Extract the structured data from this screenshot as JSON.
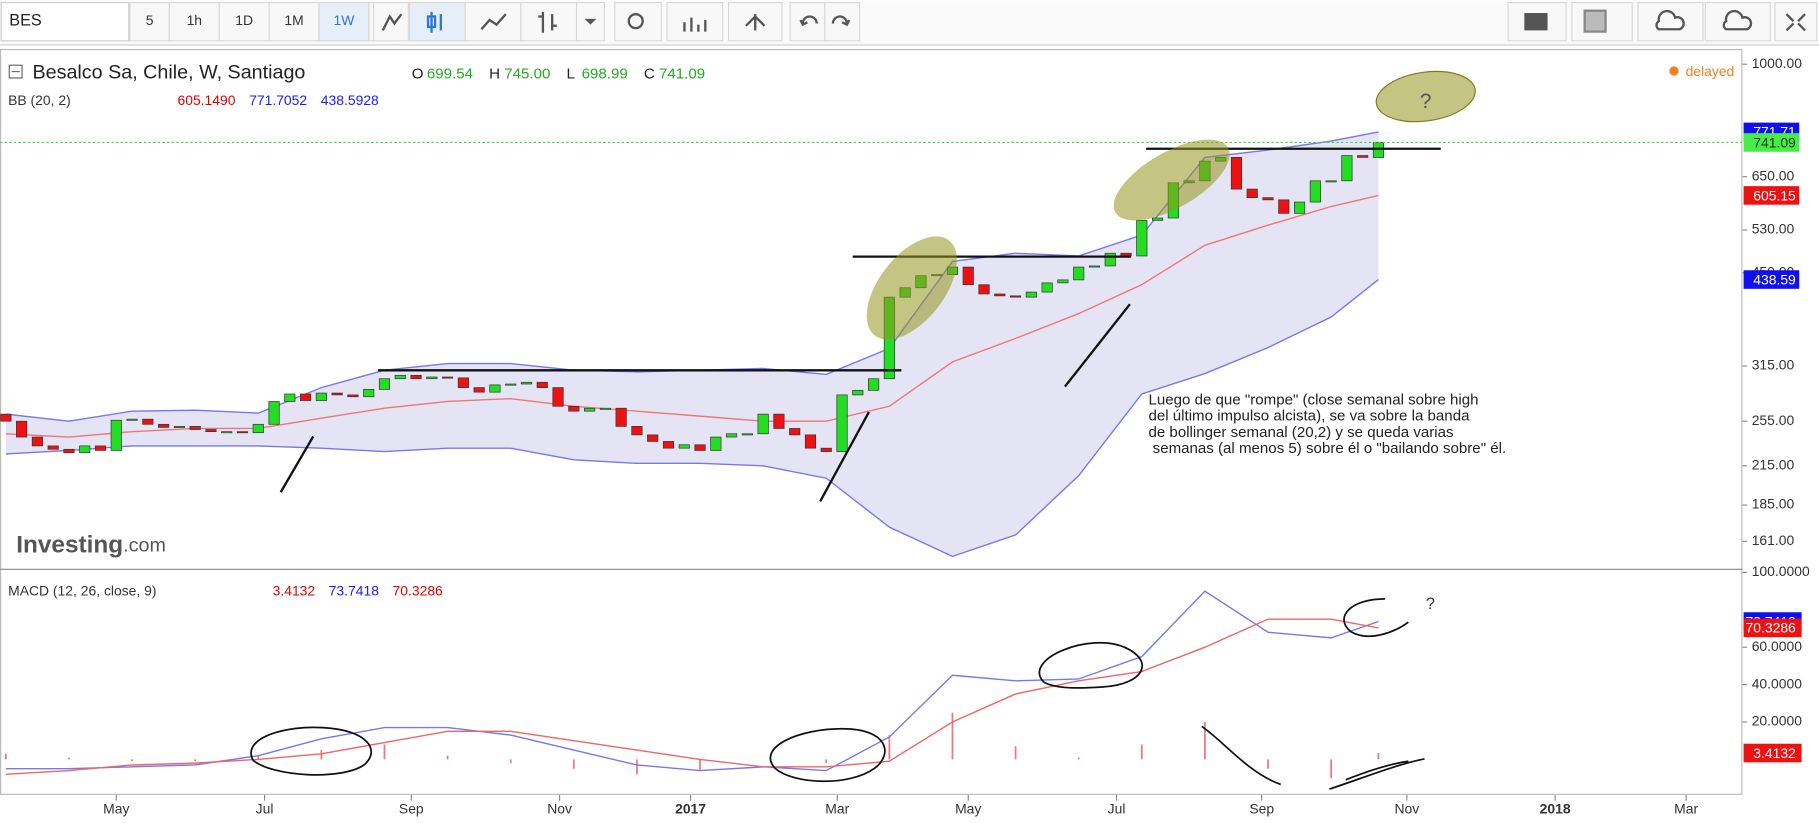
{
  "toolbar": {
    "symbol": "BES",
    "intervals": [
      "5",
      "1h",
      "1D",
      "1M",
      "1W"
    ]
  },
  "header": {
    "title": "Besalco Sa, Chile, W, Santiago",
    "ohlc": [
      {
        "key": "O",
        "value": "699.54"
      },
      {
        "key": "H",
        "value": "745.00"
      },
      {
        "key": "L",
        "value": "698.99"
      },
      {
        "key": "C",
        "value": "741.09"
      }
    ],
    "status": "delayed"
  },
  "bb_legend": {
    "name": "BB (20, 2)",
    "values": [
      {
        "text": "605.1490",
        "color": "#e00000"
      },
      {
        "text": "771.7052",
        "color": "#1a1aff"
      },
      {
        "text": "438.5928",
        "color": "#1a1aff"
      }
    ]
  },
  "macd_legend": {
    "name": "MACD (12, 26, close, 9)",
    "values": [
      {
        "text": "3.4132",
        "color": "#e00000"
      },
      {
        "text": "73.7418",
        "color": "#1a1aff"
      },
      {
        "text": "70.3286",
        "color": "#e00000"
      }
    ]
  },
  "watermark": {
    "brand": "Investing",
    "suffix": ".com"
  },
  "x_axis": {
    "xlim": [
      -0.37,
      110.07
    ],
    "xticks": [
      {
        "value": 7,
        "label": "May"
      },
      {
        "value": 16.4,
        "label": "Jul"
      },
      {
        "value": 25.7,
        "label": "Sep"
      },
      {
        "value": 35.1,
        "label": "Nov"
      },
      {
        "value": 43.4,
        "label": "2017"
      },
      {
        "value": 52.7,
        "label": "Mar"
      },
      {
        "value": 61,
        "label": "May"
      },
      {
        "value": 70.4,
        "label": "Jul"
      },
      {
        "value": 79.6,
        "label": "Sep"
      },
      {
        "value": 88.8,
        "label": "Nov"
      },
      {
        "value": 98.2,
        "label": "2018"
      },
      {
        "value": 106.5,
        "label": "Mar"
      }
    ]
  },
  "chart_data": [
    {
      "type": "candlestick",
      "log_scale": true,
      "ylim": [
        145,
        1060
      ],
      "yticks": [
        {
          "value": 1000,
          "label": "1000.00"
        },
        {
          "value": 650,
          "label": "650.00"
        },
        {
          "value": 530,
          "label": "530.00"
        },
        {
          "value": 450,
          "label": "450.00"
        },
        {
          "value": 315,
          "label": "315.00"
        },
        {
          "value": 255,
          "label": "255.00"
        },
        {
          "value": 215,
          "label": "215.00"
        },
        {
          "value": 185,
          "label": "185.00"
        },
        {
          "value": 161,
          "label": "161.00"
        }
      ],
      "up_color": "#22dd22",
      "down_color": "#ee1111",
      "open": [
        262,
        255,
        240,
        232,
        229,
        226,
        232,
        228,
        256,
        257,
        252,
        249,
        250,
        247,
        245,
        245,
        244,
        252,
        275,
        283,
        276,
        284,
        282,
        280,
        288,
        300,
        304,
        300,
        302,
        301,
        290,
        285,
        293,
        294,
        296,
        290,
        270,
        265,
        268,
        268,
        250,
        242,
        236,
        230,
        233,
        228,
        240,
        243,
        243,
        262,
        248,
        242,
        230,
        227,
        282,
        287,
        300,
        410,
        425,
        445,
        447,
        460,
        430,
        415,
        412,
        410,
        418,
        433,
        438,
        460,
        462,
        485,
        480,
        550,
        555,
        635,
        640,
        690,
        700,
        620,
        600,
        595,
        565,
        590,
        640,
        640,
        705,
        699.54
      ],
      "close": [
        255,
        240,
        232,
        229,
        226,
        232,
        228,
        256,
        257,
        252,
        249,
        250,
        247,
        245,
        245,
        244,
        252,
        275,
        283,
        276,
        284,
        282,
        280,
        288,
        300,
        304,
        300,
        302,
        301,
        290,
        285,
        293,
        294,
        296,
        290,
        270,
        265,
        268,
        268,
        250,
        242,
        236,
        230,
        233,
        228,
        240,
        243,
        243,
        262,
        248,
        242,
        230,
        227,
        282,
        287,
        300,
        410,
        425,
        445,
        447,
        460,
        430,
        415,
        412,
        410,
        418,
        433,
        438,
        460,
        462,
        485,
        480,
        550,
        555,
        635,
        640,
        690,
        700,
        620,
        600,
        595,
        565,
        590,
        640,
        640,
        705,
        700,
        741.09
      ],
      "band_x": [
        0,
        4,
        8,
        12,
        16,
        20,
        24,
        28,
        32,
        36,
        40,
        44,
        48,
        52,
        56,
        60,
        64,
        68,
        72,
        76,
        80,
        84,
        87
      ],
      "bands": [
        {
          "name": "upper",
          "color": "#7777ee",
          "values": [
            262,
            255,
            265,
            266,
            263,
            290,
            310,
            318,
            318,
            310,
            308,
            310,
            312,
            305,
            337,
            470,
            485,
            480,
            520,
            700,
            720,
            745,
            771.71
          ]
        },
        {
          "name": "middle",
          "color": "#ee7777",
          "values": [
            243,
            240,
            245,
            248,
            248,
            258,
            268,
            275,
            278,
            270,
            265,
            260,
            255,
            255,
            270,
            320,
            350,
            385,
            430,
            500,
            540,
            580,
            605.15
          ]
        },
        {
          "name": "lower",
          "color": "#7777ee",
          "values": [
            225,
            228,
            232,
            232,
            232,
            230,
            227,
            230,
            230,
            220,
            217,
            217,
            215,
            205,
            170,
            152,
            165,
            207,
            283,
            306,
            338,
            380,
            438.59
          ]
        }
      ],
      "band_fill": "#e4e4f4",
      "badges": [
        {
          "value": 771.71,
          "color": "#1010ee",
          "text_color": "#ffffff"
        },
        {
          "value": 741.09,
          "color": "#44ee44",
          "text_color": "#113311"
        },
        {
          "value": 605.15,
          "color": "#ee1111",
          "text_color": "#ffffff"
        },
        {
          "value": 438.59,
          "color": "#1010ee",
          "text_color": "#ffffff"
        }
      ]
    },
    {
      "type": "macd",
      "ylim": [
        -19,
        102
      ],
      "yticks": [
        {
          "value": 100,
          "label": "100.0000"
        },
        {
          "value": 60,
          "label": "60.0000"
        },
        {
          "value": 40,
          "label": "40.0000"
        },
        {
          "value": 20,
          "label": "20.0000"
        }
      ],
      "x": [
        0,
        4,
        8,
        12,
        16,
        20,
        24,
        28,
        32,
        36,
        40,
        44,
        48,
        52,
        56,
        60,
        64,
        68,
        72,
        76,
        80,
        84,
        87
      ],
      "series": [
        {
          "name": "histogram",
          "color": "#ee7777",
          "values": [
            3,
            1,
            -1,
            -1,
            2,
            5,
            8,
            2,
            -2,
            -5,
            -8,
            -6,
            0,
            -2,
            13,
            25,
            7,
            1,
            8,
            20,
            -5,
            -10,
            3.4132
          ]
        },
        {
          "name": "macd",
          "color": "#7777ee",
          "values": [
            -5,
            -5,
            -4,
            -3,
            2,
            11,
            17,
            17,
            13,
            5,
            -3,
            -6,
            -4,
            -6,
            12,
            45,
            42,
            43,
            55,
            90,
            68,
            65,
            73.7418
          ]
        },
        {
          "name": "signal",
          "color": "#ee6666",
          "values": [
            -8,
            -6,
            -3,
            -2,
            0,
            3,
            9,
            15,
            15,
            10,
            5,
            0,
            -4,
            -4,
            -1,
            20,
            35,
            42,
            47,
            60,
            75,
            75,
            70.3286
          ]
        }
      ],
      "badges": [
        {
          "value": 73.7418,
          "color": "#1010ee",
          "text_color": "#ffffff"
        },
        {
          "value": 70.3286,
          "color": "#ee1111",
          "text_color": "#ffffff"
        },
        {
          "value": 3.4132,
          "color": "#ee1111",
          "text_color": "#ffffff"
        }
      ]
    }
  ],
  "annotations": {
    "note": [
      "Luego de que \"rompe\" (close semanal sobre high",
      "del último impulso alcista), se va sobre la banda",
      "de bollinger semanal (20,2) y se queda varias",
      " semanas (al menos 5) sobre él o \"bailando sobre\" él."
    ],
    "question": "?"
  }
}
